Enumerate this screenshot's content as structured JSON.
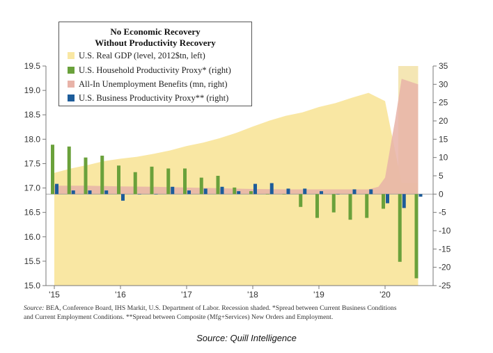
{
  "chart_data": {
    "type": "bar",
    "title_line1": "No Economic Recovery",
    "title_line2": "Without Productivity Recovery",
    "x_ticks": [
      "'15",
      "'16",
      "'17",
      "'18",
      "'19",
      "'20"
    ],
    "x_range": [
      2015.0,
      2020.6
    ],
    "left_axis": {
      "range": [
        15.0,
        19.5
      ],
      "ticks": [
        "19.5",
        "19.0",
        "18.5",
        "18.0",
        "17.5",
        "17.0",
        "16.5",
        "16.0",
        "15.5",
        "15.0"
      ]
    },
    "right_axis": {
      "range": [
        -25,
        35
      ],
      "ticks": [
        "35",
        "30",
        "25",
        "20",
        "15",
        "10",
        "5",
        "0",
        "-5",
        "-10",
        "-15",
        "-20",
        "-25"
      ]
    },
    "recession_shading": [
      2020.2,
      2020.5
    ],
    "colors": {
      "gdp": "#f9e7a3",
      "household": "#6aa13b",
      "unemployment": "#e8b3a8",
      "business": "#1d5c9a",
      "recession": "#f4e6b4"
    },
    "series": [
      {
        "name": "U.S. Real GDP (level, 2012$tn, left)",
        "axis": "left",
        "x": [
          2015.0,
          2015.25,
          2015.5,
          2015.75,
          2016.0,
          2016.25,
          2016.5,
          2016.75,
          2017.0,
          2017.25,
          2017.5,
          2017.75,
          2018.0,
          2018.25,
          2018.5,
          2018.75,
          2019.0,
          2019.25,
          2019.5,
          2019.75,
          2020.0,
          2020.25,
          2020.5
        ],
        "values": [
          17.31,
          17.4,
          17.47,
          17.55,
          17.6,
          17.64,
          17.7,
          17.77,
          17.86,
          17.93,
          18.02,
          18.13,
          18.26,
          18.38,
          18.48,
          18.55,
          18.66,
          18.74,
          18.85,
          18.95,
          18.78,
          17.1,
          17.1
        ]
      },
      {
        "name": "U.S. Household Productivity Proxy* (right)",
        "axis": "right",
        "x": [
          2015.0,
          2015.25,
          2015.5,
          2015.75,
          2016.0,
          2016.25,
          2016.5,
          2016.75,
          2017.0,
          2017.25,
          2017.5,
          2017.75,
          2018.0,
          2018.25,
          2018.5,
          2018.75,
          2019.0,
          2019.25,
          2019.5,
          2019.75,
          2020.0,
          2020.25,
          2020.5
        ],
        "values": [
          13.5,
          13.0,
          10.0,
          10.5,
          7.8,
          6.0,
          7.5,
          7.0,
          7.0,
          4.5,
          5.0,
          1.8,
          0.8,
          0,
          0,
          -3.5,
          -6.5,
          -5.0,
          -7.0,
          -6.5,
          -4.0,
          -18.5,
          -23.0
        ]
      },
      {
        "name": "All-In Unemployment Benefits (mn, right)",
        "axis": "right",
        "x": [
          2015.0,
          2015.5,
          2016.0,
          2016.5,
          2017.0,
          2017.5,
          2018.0,
          2018.5,
          2018.75,
          2019.0,
          2019.5,
          2019.75,
          2019.9,
          2020.0,
          2020.1,
          2020.15,
          2020.25,
          2020.5
        ],
        "values": [
          2.3,
          2.3,
          2.1,
          2.0,
          1.8,
          1.6,
          1.4,
          1.3,
          1.3,
          1.3,
          1.3,
          1.3,
          2.0,
          4.5,
          15.0,
          20.0,
          31.5,
          30.0
        ]
      },
      {
        "name": "U.S. Business Productivity Proxy** (right)",
        "axis": "right",
        "x": [
          2015.0,
          2015.25,
          2015.5,
          2015.75,
          2016.0,
          2016.25,
          2016.5,
          2016.75,
          2017.0,
          2017.25,
          2017.5,
          2017.75,
          2018.0,
          2018.25,
          2018.5,
          2018.75,
          2019.0,
          2019.25,
          2019.5,
          2019.75,
          2020.0,
          2020.25,
          2020.5
        ],
        "values": [
          2.8,
          1.0,
          1.0,
          1.0,
          -1.8,
          0,
          0,
          2.0,
          1.0,
          1.5,
          2.0,
          0.8,
          2.8,
          3.0,
          1.5,
          1.5,
          0.8,
          0,
          1.3,
          1.3,
          -2.5,
          -3.8,
          -0.7
        ]
      }
    ]
  },
  "source_note": {
    "label": "Source:",
    "text1": "BEA, Conference Board, IHS Markit, U.S. Department of Labor. Recession shaded. *Spread between Current Business Conditions",
    "text2": "and Current Employment Conditions. **Spread between Composite (Mfg+Services) New Orders and Employment."
  },
  "bottom_source": "Source: Quill Intelligence"
}
